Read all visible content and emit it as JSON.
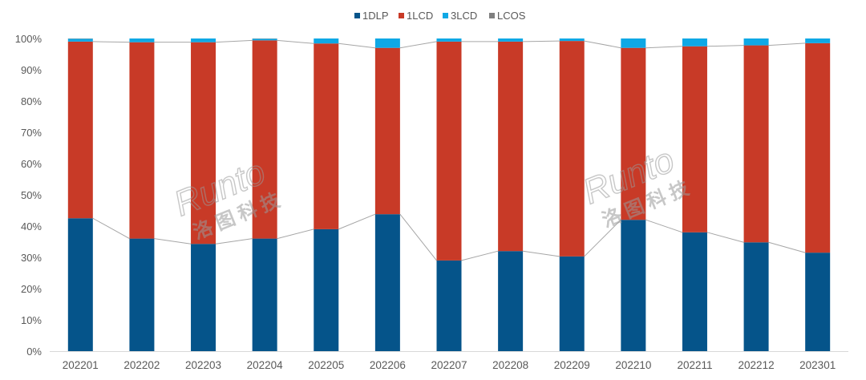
{
  "chart_data": {
    "type": "bar",
    "stacked": true,
    "percent": true,
    "categories": [
      "202201",
      "202202",
      "202203",
      "202204",
      "202205",
      "202206",
      "202207",
      "202208",
      "202209",
      "202210",
      "202211",
      "202212",
      "202301"
    ],
    "series": [
      {
        "name": "1DLP",
        "color": "#05548A",
        "values": [
          42.5,
          36.0,
          34.3,
          36.0,
          39.0,
          43.8,
          29.0,
          32.0,
          30.3,
          42.0,
          38.0,
          34.8,
          31.5
        ]
      },
      {
        "name": "1LCD",
        "color": "#C83A27",
        "values": [
          56.5,
          62.8,
          64.5,
          63.4,
          59.4,
          53.2,
          70.0,
          67.0,
          68.9,
          55.0,
          59.5,
          63.0,
          67.0
        ]
      },
      {
        "name": "3LCD",
        "color": "#0FA8E5",
        "values": [
          0.9,
          1.2,
          1.2,
          0.5,
          1.6,
          3.0,
          1.0,
          1.0,
          0.8,
          3.0,
          2.5,
          2.2,
          1.5
        ]
      },
      {
        "name": "LCOS",
        "color": "#7F7F7F",
        "values": [
          0.1,
          0.0,
          0.0,
          0.1,
          0.0,
          0.0,
          0.0,
          0.0,
          0.0,
          0.0,
          0.0,
          0.0,
          0.0
        ]
      }
    ],
    "ylim": [
      0,
      100
    ],
    "yticks": [
      "0%",
      "10%",
      "20%",
      "30%",
      "40%",
      "50%",
      "60%",
      "70%",
      "80%",
      "90%",
      "100%"
    ],
    "legend_position": "top-center",
    "grid": false,
    "connector_lines": true,
    "watermark": {
      "latin": "Runto",
      "cjk": "洛图科技",
      "copies": 2
    }
  }
}
